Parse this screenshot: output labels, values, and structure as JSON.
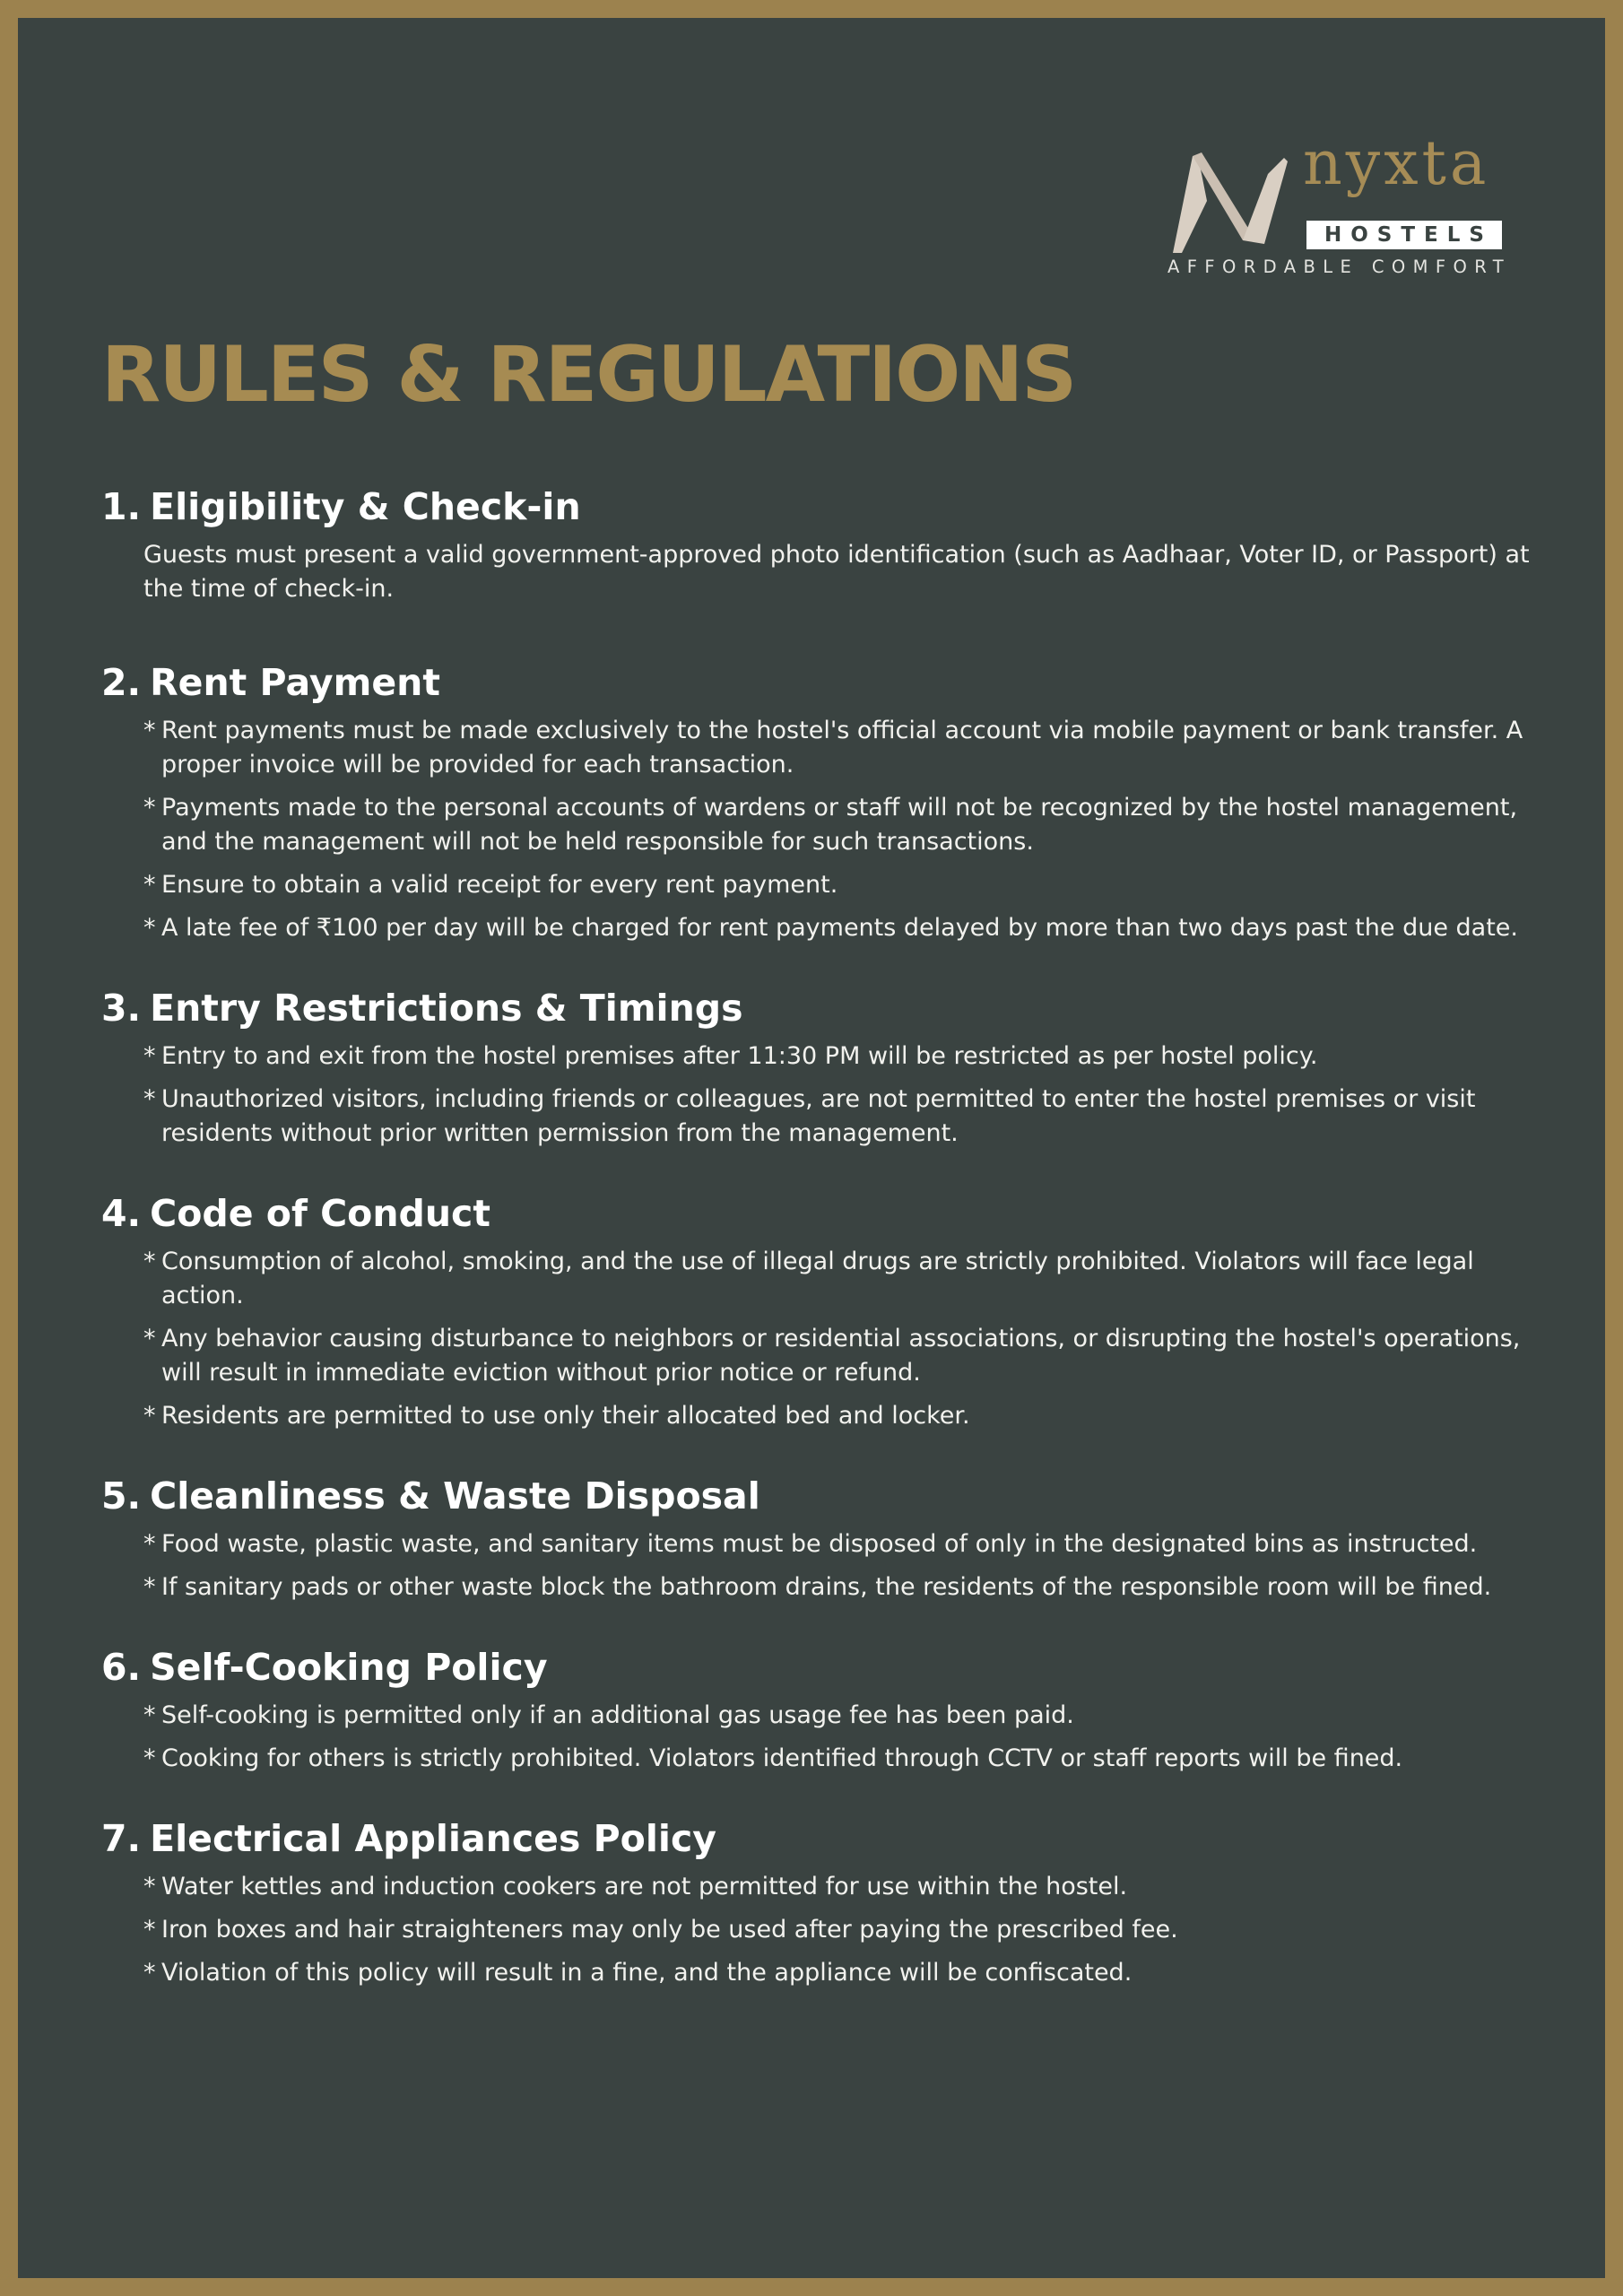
{
  "logo": {
    "brand_name": "nyxta",
    "badge": "HOSTELS",
    "tagline": "AFFORDABLE COMFORT",
    "icon": "nyxta-n-mark-icon",
    "colors": {
      "gold": "#a68b52",
      "light": "#d9cfc3"
    }
  },
  "title": "RULES & REGULATIONS",
  "colors": {
    "background": "#3a4341",
    "border": "#9c824e",
    "heading": "#a68b52",
    "text": "#f2f2ee"
  },
  "sections": [
    {
      "number": "1.",
      "heading": "Eligibility & Check-in",
      "paragraph": "Guests must present a valid government-approved photo identification (such as Aadhaar, Voter ID, or Passport) at the time of check-in."
    },
    {
      "number": "2.",
      "heading": "Rent Payment",
      "items": [
        "Rent payments must be made exclusively to the hostel's official account via mobile payment or bank transfer. A proper invoice will be provided for each transaction.",
        "Payments made to the personal accounts of wardens or staff will not be recognized by the hostel management, and the management will not be held responsible for such transactions.",
        "Ensure to obtain a valid receipt for every rent payment.",
        "A late fee of ₹100 per day will be charged for rent payments delayed by more than two days past the due date."
      ]
    },
    {
      "number": "3.",
      "heading": "Entry Restrictions & Timings",
      "items": [
        "Entry to and exit from the hostel premises after 11:30 PM will be restricted as per hostel policy.",
        "Unauthorized visitors, including friends or colleagues, are not permitted to enter the hostel premises or visit residents without prior written permission from the management."
      ]
    },
    {
      "number": "4.",
      "heading": "Code of Conduct",
      "items": [
        "Consumption of alcohol, smoking, and the use of illegal drugs are strictly prohibited. Violators will face legal action.",
        "Any behavior causing disturbance to neighbors or residential associations, or disrupting the hostel's operations, will result in immediate eviction without prior notice or refund.",
        "Residents are permitted to use only their allocated bed and locker."
      ]
    },
    {
      "number": "5.",
      "heading": "Cleanliness & Waste Disposal",
      "items": [
        "Food waste, plastic waste, and sanitary items must be disposed of only in the designated bins as instructed.",
        "If sanitary pads or other waste block the bathroom drains, the residents of the responsible room will be fined."
      ]
    },
    {
      "number": "6.",
      "heading": "Self-Cooking Policy",
      "items": [
        "Self-cooking is permitted only if an additional gas usage fee has been paid.",
        "Cooking for others is strictly prohibited. Violators identified through CCTV or staff reports will be fined."
      ]
    },
    {
      "number": "7.",
      "heading": "Electrical Appliances Policy",
      "items": [
        "Water kettles and induction cookers are not permitted for use within the hostel.",
        "Iron boxes and hair straighteners may only be used after paying the prescribed fee.",
        "Violation of this policy will result in a fine, and the appliance will be confiscated."
      ]
    }
  ]
}
